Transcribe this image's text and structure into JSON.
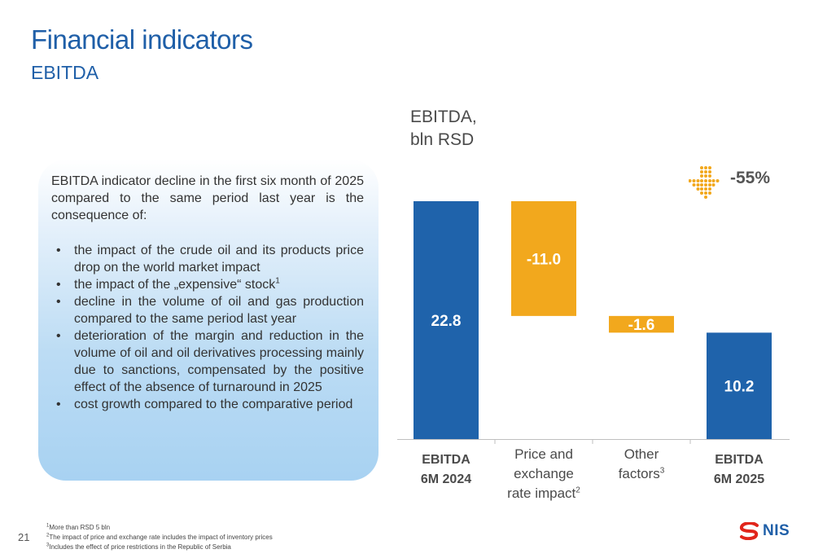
{
  "header": {
    "title": "Financial indicators",
    "subtitle": "EBITDA"
  },
  "textbox": {
    "intro": "EBITDA indicator decline in the first six month of  2025 compared to the same period last year is the consequence of:",
    "bullets": [
      {
        "text": "the impact of the crude oil and its products price drop on the world market impact",
        "sup": ""
      },
      {
        "text": "the impact of the „expensive“ stock",
        "sup": "1"
      },
      {
        "text": "decline in the volume of oil and gas production compared to the same period last year",
        "sup": ""
      },
      {
        "text": "deterioration of the margin and reduction in the volume of oil and oil derivatives processing mainly due to sanctions, compensated by the positive effect of the absence of turnaround in 2025",
        "sup": ""
      },
      {
        "text": "cost growth compared to the comparative period",
        "sup": ""
      }
    ]
  },
  "chart_data": {
    "type": "bar",
    "subtype": "waterfall",
    "title_line1": "EBITDA,",
    "title_line2": "bln RSD",
    "categories": [
      {
        "line1": "EBITDA",
        "line2": "6M 2024",
        "line3": "",
        "sup": "",
        "bold": true
      },
      {
        "line1": "Price and",
        "line2": "exchange",
        "line3": "rate impact",
        "sup": "2",
        "bold": false
      },
      {
        "line1": "Other",
        "line2": "factors",
        "line3": "",
        "sup": "3",
        "bold": false
      },
      {
        "line1": "EBITDA",
        "line2": "6M 2025",
        "line3": "",
        "sup": "",
        "bold": true
      }
    ],
    "values": [
      22.8,
      -11.0,
      -1.6,
      10.2
    ],
    "labels": [
      "22.8",
      "-11.0",
      "-1.6",
      "10.2"
    ],
    "kinds": [
      "total",
      "delta",
      "delta",
      "total"
    ],
    "colors": {
      "total": "#1f63ab",
      "decrease": "#f2a81d",
      "label": "#ffffff",
      "axis": "#bfbfbf"
    },
    "change_label": "-55%",
    "grid": false,
    "legend": "none"
  },
  "change_icon": "down-arrow-dotted-icon",
  "footnotes": [
    {
      "sup": "1",
      "text": "More than RSD 5 bln"
    },
    {
      "sup": "2",
      "text": "The impact of price and exchange rate includes the impact of inventory prices"
    },
    {
      "sup": "3",
      "text": "Includes the effect of price restrictions in the Republic of Serbia"
    }
  ],
  "page_number": "21",
  "logo": {
    "text": "NIS",
    "color": "#e1251b"
  }
}
